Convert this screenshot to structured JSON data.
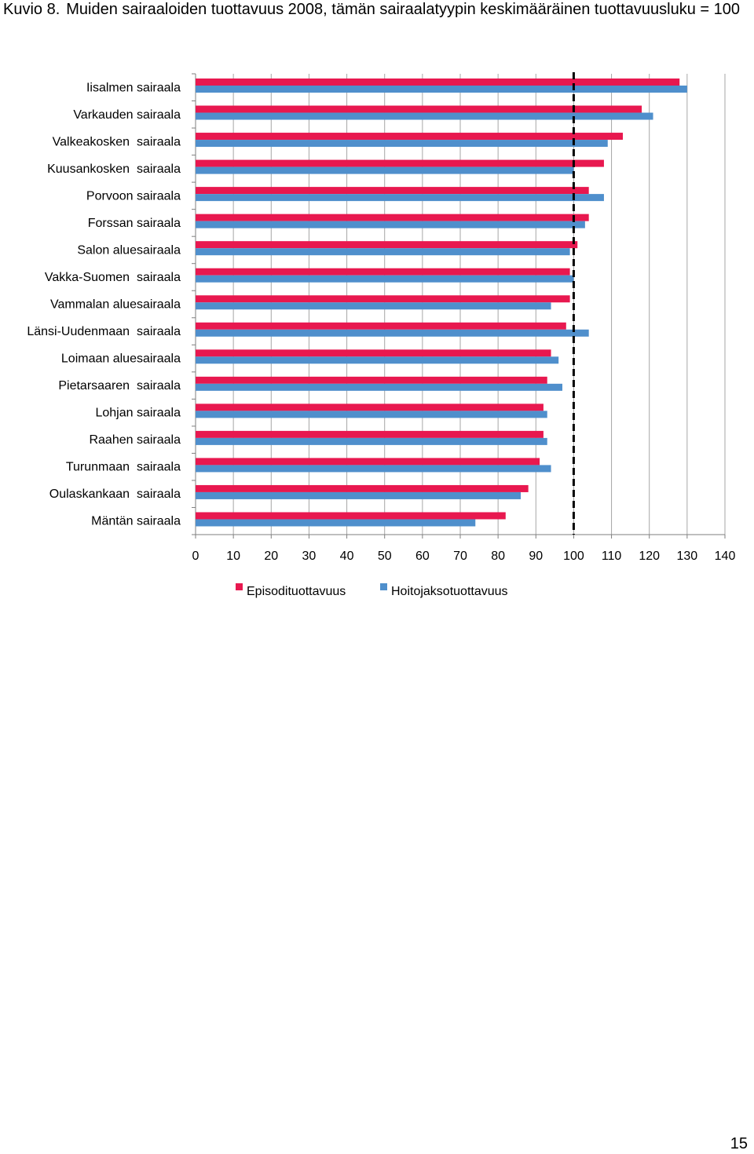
{
  "page": {
    "figure_label": "Kuvio 8.",
    "title_text": "Muiden sairaaloiden tuottavuus 2008, tämän sairaalatyypin keskimääräinen tuottavuusluku = 100",
    "page_number": "15"
  },
  "chart_data": {
    "type": "bar",
    "orientation": "horizontal",
    "categories": [
      "Iisalmen sairaala",
      "Varkauden sairaala",
      "Valkeakosken  sairaala",
      "Kuusankosken  sairaala",
      "Porvoon sairaala",
      "Forssan sairaala",
      "Salon aluesairaala",
      "Vakka-Suomen  sairaala",
      "Vammalan aluesairaala",
      "Länsi-Uudenmaan  sairaala",
      "Loimaan aluesairaala",
      "Pietarsaaren  sairaala",
      "Lohjan sairaala",
      "Raahen sairaala",
      "Turunmaan  sairaala",
      "Oulaskankaan  sairaala",
      "Mäntän sairaala"
    ],
    "series": [
      {
        "name": "Episodituottavuus",
        "color": "#e8184f",
        "values": [
          128,
          118,
          113,
          108,
          104,
          104,
          101,
          99,
          99,
          98,
          94,
          93,
          92,
          92,
          91,
          88,
          82
        ]
      },
      {
        "name": "Hoitojaksotuottavuus",
        "color": "#4f8fcc",
        "values": [
          130,
          121,
          109,
          100,
          108,
          103,
          99,
          100,
          94,
          104,
          96,
          97,
          93,
          93,
          94,
          86,
          74
        ]
      }
    ],
    "xlim": [
      0,
      140
    ],
    "xticks": [
      "0",
      "10",
      "20",
      "30",
      "40",
      "50",
      "60",
      "70",
      "80",
      "90",
      "100",
      "110",
      "120",
      "130",
      "140"
    ],
    "reference_line": {
      "value": 100,
      "style": "dashed",
      "color": "#000000"
    },
    "grid": true,
    "legend_position": "bottom"
  }
}
